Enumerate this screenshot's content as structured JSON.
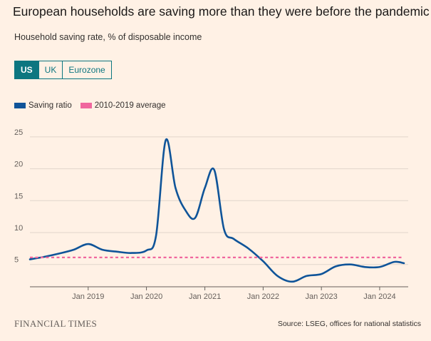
{
  "header": {
    "title": "European households are saving more than they were before the pandemic",
    "subtitle": "Household saving rate, % of disposable income"
  },
  "tabs": [
    {
      "label": "US",
      "active": true
    },
    {
      "label": "UK",
      "active": false
    },
    {
      "label": "Eurozone",
      "active": false
    }
  ],
  "legend": [
    {
      "label": "Saving ratio",
      "color": "#0f5499"
    },
    {
      "label": "2010-2019 average",
      "color": "#f0679e"
    }
  ],
  "footer": {
    "brand": "FINANCIAL TIMES",
    "source": "Source: LSEG, offices for national statistics"
  },
  "chart_data": {
    "type": "line",
    "xlabel": "",
    "ylabel": "",
    "ylim": [
      1.5,
      27
    ],
    "xlim": [
      "2018-01-01",
      "2024-06-01"
    ],
    "y_ticks": [
      5,
      10,
      15,
      20,
      25
    ],
    "x_ticks": [
      {
        "label": "Jan 2019",
        "date": "2019-01-01"
      },
      {
        "label": "Jan 2020",
        "date": "2020-01-01"
      },
      {
        "label": "Jan 2021",
        "date": "2021-01-01"
      },
      {
        "label": "Jan 2022",
        "date": "2022-01-01"
      },
      {
        "label": "Jan 2023",
        "date": "2023-01-01"
      },
      {
        "label": "Jan 2024",
        "date": "2024-01-01"
      }
    ],
    "grid": true,
    "legend_position": "top-left",
    "series": [
      {
        "name": "Saving ratio",
        "color": "#0f5499",
        "points": [
          [
            "2018-01-01",
            5.8
          ],
          [
            "2018-04-01",
            6.2
          ],
          [
            "2018-07-01",
            6.7
          ],
          [
            "2018-10-01",
            7.3
          ],
          [
            "2019-01-01",
            8.2
          ],
          [
            "2019-04-01",
            7.3
          ],
          [
            "2019-07-01",
            7.0
          ],
          [
            "2019-10-01",
            6.8
          ],
          [
            "2020-01-01",
            7.2
          ],
          [
            "2020-03-01",
            9.5
          ],
          [
            "2020-05-01",
            24.5
          ],
          [
            "2020-07-01",
            17.0
          ],
          [
            "2020-09-01",
            13.5
          ],
          [
            "2020-11-01",
            12.3
          ],
          [
            "2021-01-01",
            17.0
          ],
          [
            "2021-03-01",
            19.8
          ],
          [
            "2021-05-01",
            10.5
          ],
          [
            "2021-07-01",
            9.0
          ],
          [
            "2021-10-01",
            7.5
          ],
          [
            "2022-01-01",
            5.5
          ],
          [
            "2022-04-01",
            3.2
          ],
          [
            "2022-07-01",
            2.3
          ],
          [
            "2022-10-01",
            3.2
          ],
          [
            "2023-01-01",
            3.5
          ],
          [
            "2023-04-01",
            4.7
          ],
          [
            "2023-07-01",
            5.0
          ],
          [
            "2023-10-01",
            4.6
          ],
          [
            "2024-01-01",
            4.6
          ],
          [
            "2024-04-01",
            5.4
          ],
          [
            "2024-06-01",
            5.2
          ]
        ]
      },
      {
        "name": "2010-2019 average",
        "color": "#f0679e",
        "dashed": true,
        "points": [
          [
            "2018-01-01",
            6.1
          ],
          [
            "2024-06-01",
            6.1
          ]
        ]
      }
    ]
  }
}
